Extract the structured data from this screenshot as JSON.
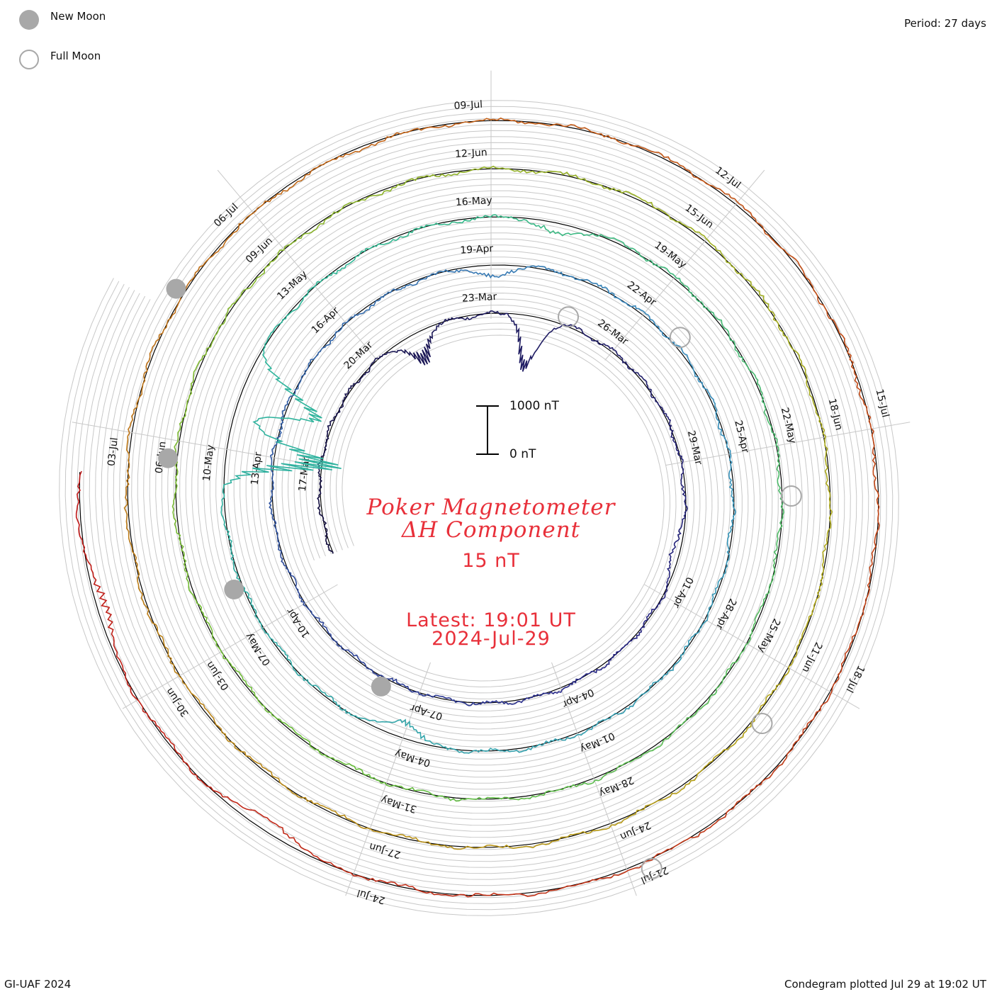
{
  "legend": {
    "new_moon_label": "New Moon",
    "full_moon_label": "Full Moon",
    "new_moon_color": "#a8a8a8",
    "full_moon_color": "#a8a8a8"
  },
  "period_label": "Period: 27 days",
  "center": {
    "title_line1": "Poker Magnetometer",
    "title_line2": "ΔH Component",
    "value": "15 nT",
    "latest_line1": "Latest: 19:01 UT",
    "latest_line2": "2024-Jul-29",
    "text_color": "#e8303a"
  },
  "scale_bar": {
    "top_label": "1000 nT",
    "bottom_label": "0 nT"
  },
  "footer": {
    "left": "GI-UAF 2024",
    "right": "Condegram plotted Jul 29 at 19:02 UT"
  },
  "chart_data": {
    "type": "condegram",
    "title": "Poker Magnetometer",
    "subtitle": "ΔH Component",
    "period_days": 27,
    "latest_value_nT": 15,
    "scale_nT": [
      0,
      1000
    ],
    "start_date": "2024-Mar-15",
    "end_date": "2024-Jul-29",
    "turns": [
      {
        "start": "2024-Mar-15",
        "color": "#151040"
      },
      {
        "start": "2024-Apr-11",
        "color": "#2a2a8a"
      },
      {
        "start": "2024-May-08",
        "color": "#3a8fbf"
      },
      {
        "start": "2024-Jun-04",
        "color": "#5cb85c"
      },
      {
        "start": "2024-Jul-01",
        "color": "#b59a1a"
      },
      {
        "start": "2024-Jul-24",
        "color": "#c03018"
      }
    ],
    "colors": [
      "#151040",
      "#2a2a8a",
      "#3a8fbf",
      "#2fb89a",
      "#6bbf3a",
      "#b5a81a",
      "#c45a18",
      "#c01818"
    ],
    "date_labels": [
      "17-Mar",
      "20-Mar",
      "23-Mar",
      "26-Mar",
      "29-Mar",
      "01-Apr",
      "04-Apr",
      "07-Apr",
      "10-Apr",
      "13-Apr",
      "16-Apr",
      "19-Apr",
      "22-Apr",
      "25-Apr",
      "28-Apr",
      "01-May",
      "04-May",
      "07-May",
      "10-May",
      "13-May",
      "16-May",
      "19-May",
      "22-May",
      "25-May",
      "28-May",
      "31-May",
      "03-Jun",
      "06-Jun",
      "09-Jun",
      "12-Jun",
      "15-Jun",
      "18-Jun",
      "21-Jun",
      "24-Jun",
      "27-Jun",
      "30-Jun",
      "03-Jul",
      "06-Jul",
      "09-Jul",
      "12-Jul",
      "15-Jul",
      "18-Jul",
      "21-Jul",
      "24-Jul"
    ],
    "new_moons": [
      "2024-Apr-08",
      "2024-May-08",
      "2024-Jun-06",
      "2024-Jul-05"
    ],
    "full_moons": [
      "2024-Mar-25",
      "2024-Apr-23",
      "2024-May-23",
      "2024-Jun-22",
      "2024-Jul-21"
    ],
    "disturbances": [
      {
        "date": "2024-Mar-21",
        "amplitude_nT": 700
      },
      {
        "date": "2024-Mar-24",
        "amplitude_nT": 1300
      },
      {
        "date": "2024-Mar-31",
        "amplitude_nT": 200
      },
      {
        "date": "2024-Apr-19",
        "amplitude_nT": 300
      },
      {
        "date": "2024-May-04",
        "amplitude_nT": 400
      },
      {
        "date": "2024-May-10",
        "amplitude_nT": 2500
      },
      {
        "date": "2024-May-11",
        "amplitude_nT": 2000
      },
      {
        "date": "2024-May-17",
        "amplitude_nT": 300
      },
      {
        "date": "2024-Jul-25",
        "amplitude_nT": 300
      },
      {
        "date": "2024-Jul-28",
        "amplitude_nT": 300
      }
    ]
  }
}
